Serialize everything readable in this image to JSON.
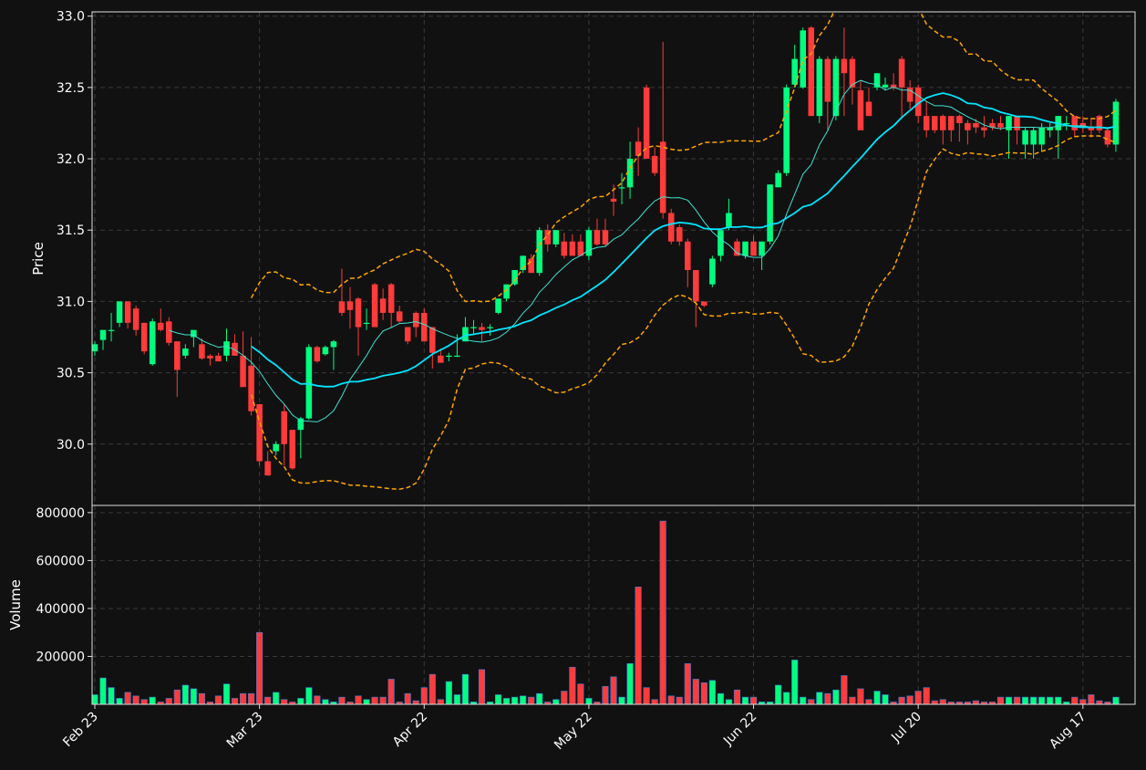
{
  "colors": {
    "background": "#111111",
    "up": "#00ff7f",
    "down": "#ff3b3b",
    "ma_fast": "#40e0d0",
    "ma_slow": "#00e5ff",
    "bollinger": "#ffa500",
    "grid": "#3a3a3a",
    "text": "#ffffff",
    "volume_edge": "#3a7bd5"
  },
  "chart_data": {
    "type": "candlestick",
    "panels": [
      {
        "name": "price",
        "ylabel": "Price",
        "ylim": [
          29.57,
          33.03
        ],
        "yticks": [
          "30.0",
          "30.5",
          "31.0",
          "31.5",
          "32.0",
          "32.5",
          "33.0"
        ],
        "grid": true
      },
      {
        "name": "volume",
        "ylabel": "Volume",
        "ylim": [
          0,
          830000
        ],
        "yticks": [
          "200000",
          "400000",
          "600000",
          "800000"
        ],
        "grid": true
      }
    ],
    "x_range": [
      0,
      126
    ],
    "x_ticks": [
      {
        "index": 0,
        "label": "Feb 23"
      },
      {
        "index": 20,
        "label": "Mar 23"
      },
      {
        "index": 40,
        "label": "Apr 22"
      },
      {
        "index": 60,
        "label": "May 22"
      },
      {
        "index": 80,
        "label": "Jun 22"
      },
      {
        "index": 100,
        "label": "Jul 20"
      },
      {
        "index": 120,
        "label": "Aug 17"
      }
    ],
    "candles_ohlcv": [
      [
        30.65,
        30.72,
        30.62,
        30.7,
        40000
      ],
      [
        30.73,
        30.8,
        30.66,
        30.8,
        110000
      ],
      [
        30.8,
        30.92,
        30.72,
        30.8,
        70000
      ],
      [
        30.85,
        31.0,
        30.82,
        31.0,
        25000
      ],
      [
        31.0,
        31.0,
        30.81,
        30.85,
        50000
      ],
      [
        30.95,
        30.97,
        30.76,
        30.8,
        35000
      ],
      [
        30.85,
        30.85,
        30.63,
        30.65,
        20000
      ],
      [
        30.56,
        30.88,
        30.55,
        30.86,
        30000
      ],
      [
        30.85,
        30.95,
        30.79,
        30.8,
        10000
      ],
      [
        30.86,
        30.89,
        30.69,
        30.71,
        25000
      ],
      [
        30.72,
        30.72,
        30.33,
        30.52,
        60000
      ],
      [
        30.62,
        30.7,
        30.6,
        30.67,
        80000
      ],
      [
        30.75,
        30.79,
        30.68,
        30.8,
        65000
      ],
      [
        30.7,
        30.74,
        30.59,
        30.6,
        45000
      ],
      [
        30.62,
        30.63,
        30.55,
        30.6,
        10000
      ],
      [
        30.62,
        30.64,
        30.58,
        30.58,
        35000
      ],
      [
        30.62,
        30.81,
        30.58,
        30.72,
        85000
      ],
      [
        30.71,
        30.77,
        30.62,
        30.62,
        25000
      ],
      [
        30.62,
        30.79,
        30.59,
        30.4,
        45000
      ],
      [
        30.55,
        30.75,
        30.2,
        30.23,
        45000
      ],
      [
        30.28,
        30.28,
        29.85,
        29.88,
        300000
      ],
      [
        29.88,
        29.95,
        29.81,
        29.78,
        30000
      ],
      [
        29.95,
        30.02,
        29.92,
        30.0,
        50000
      ],
      [
        30.23,
        30.28,
        29.85,
        30.0,
        20000
      ],
      [
        30.1,
        30.1,
        29.82,
        29.83,
        10000
      ],
      [
        30.1,
        30.19,
        29.9,
        30.18,
        25000
      ],
      [
        30.18,
        30.7,
        30.17,
        30.68,
        70000
      ],
      [
        30.68,
        30.69,
        30.57,
        30.58,
        35000
      ],
      [
        30.63,
        30.69,
        30.62,
        30.68,
        20000
      ],
      [
        30.68,
        30.73,
        30.52,
        30.72,
        10000
      ],
      [
        31.0,
        31.23,
        30.9,
        30.92,
        30000
      ],
      [
        31.0,
        31.1,
        30.81,
        30.94,
        10000
      ],
      [
        31.02,
        31.03,
        30.62,
        30.82,
        35000
      ],
      [
        30.85,
        30.95,
        30.8,
        30.85,
        20000
      ],
      [
        31.12,
        31.13,
        30.84,
        30.82,
        30000
      ],
      [
        31.02,
        31.09,
        30.87,
        30.92,
        30000
      ],
      [
        31.12,
        31.13,
        30.82,
        30.92,
        105000
      ],
      [
        30.93,
        30.97,
        30.85,
        30.86,
        10000
      ],
      [
        30.82,
        30.82,
        30.7,
        30.72,
        45000
      ],
      [
        30.92,
        30.93,
        30.75,
        30.82,
        15000
      ],
      [
        30.92,
        30.95,
        30.74,
        30.72,
        70000
      ],
      [
        30.82,
        30.82,
        30.53,
        30.64,
        125000
      ],
      [
        30.62,
        30.67,
        30.58,
        30.57,
        20000
      ],
      [
        30.62,
        30.64,
        30.58,
        30.62,
        95000
      ],
      [
        30.62,
        30.77,
        30.61,
        30.62,
        40000
      ],
      [
        30.72,
        30.89,
        30.72,
        30.82,
        125000
      ],
      [
        30.82,
        30.87,
        30.77,
        30.82,
        10000
      ],
      [
        30.82,
        30.85,
        30.72,
        30.8,
        145000
      ],
      [
        30.82,
        30.84,
        30.76,
        30.82,
        10000
      ],
      [
        30.92,
        31.02,
        30.91,
        31.02,
        40000
      ],
      [
        31.02,
        31.08,
        31.0,
        31.12,
        25000
      ],
      [
        31.12,
        31.21,
        31.11,
        31.22,
        30000
      ],
      [
        31.22,
        31.32,
        31.2,
        31.32,
        35000
      ],
      [
        31.3,
        31.33,
        31.25,
        31.2,
        30000
      ],
      [
        31.2,
        31.52,
        31.18,
        31.5,
        45000
      ],
      [
        31.5,
        31.54,
        31.35,
        31.4,
        10000
      ],
      [
        31.4,
        31.5,
        31.38,
        31.5,
        20000
      ],
      [
        31.42,
        31.48,
        31.3,
        31.32,
        55000
      ],
      [
        31.42,
        31.47,
        31.38,
        31.32,
        155000
      ],
      [
        31.42,
        31.47,
        31.38,
        31.32,
        85000
      ],
      [
        31.32,
        31.52,
        31.29,
        31.5,
        25000
      ],
      [
        31.5,
        31.58,
        31.39,
        31.4,
        10000
      ],
      [
        31.5,
        31.58,
        31.39,
        31.4,
        75000
      ],
      [
        31.72,
        31.82,
        31.6,
        31.7,
        115000
      ],
      [
        31.8,
        31.9,
        31.68,
        31.8,
        30000
      ],
      [
        31.8,
        32.12,
        31.72,
        32.0,
        170000
      ],
      [
        32.12,
        32.22,
        31.88,
        32.02,
        490000
      ],
      [
        32.5,
        32.52,
        32.1,
        32.0,
        70000
      ],
      [
        32.02,
        32.08,
        31.88,
        31.9,
        20000
      ],
      [
        32.12,
        32.82,
        31.58,
        31.62,
        765000
      ],
      [
        31.62,
        31.65,
        31.4,
        31.42,
        35000
      ],
      [
        31.52,
        31.54,
        31.39,
        31.42,
        30000
      ],
      [
        31.42,
        31.44,
        31.1,
        31.22,
        170000
      ],
      [
        31.22,
        31.22,
        30.82,
        31.0,
        105000
      ],
      [
        31.0,
        31.0,
        30.96,
        30.97,
        90000
      ],
      [
        31.12,
        31.32,
        31.1,
        31.3,
        100000
      ],
      [
        31.32,
        31.5,
        31.28,
        31.5,
        45000
      ],
      [
        31.52,
        31.72,
        31.5,
        31.62,
        20000
      ],
      [
        31.42,
        31.44,
        31.35,
        31.32,
        60000
      ],
      [
        31.32,
        31.41,
        31.3,
        31.42,
        30000
      ],
      [
        31.42,
        31.46,
        31.39,
        31.32,
        30000
      ],
      [
        31.32,
        31.42,
        31.22,
        31.42,
        10000
      ],
      [
        31.42,
        31.81,
        31.4,
        31.82,
        10000
      ],
      [
        31.8,
        31.92,
        31.8,
        31.9,
        80000
      ],
      [
        31.9,
        32.52,
        31.88,
        32.5,
        50000
      ],
      [
        32.52,
        32.8,
        32.5,
        32.7,
        185000
      ],
      [
        32.5,
        32.92,
        32.49,
        32.9,
        30000
      ],
      [
        32.92,
        32.93,
        32.3,
        32.3,
        20000
      ],
      [
        32.3,
        32.72,
        32.25,
        32.7,
        50000
      ],
      [
        32.7,
        32.72,
        32.2,
        32.4,
        45000
      ],
      [
        32.3,
        32.72,
        32.27,
        32.7,
        60000
      ],
      [
        32.7,
        32.92,
        32.3,
        32.6,
        120000
      ],
      [
        32.7,
        32.72,
        32.38,
        32.5,
        30000
      ],
      [
        32.48,
        32.55,
        32.2,
        32.2,
        65000
      ],
      [
        32.4,
        32.5,
        32.32,
        32.3,
        20000
      ],
      [
        32.5,
        32.6,
        32.48,
        32.6,
        55000
      ],
      [
        32.5,
        32.57,
        32.48,
        32.52,
        40000
      ],
      [
        32.52,
        32.6,
        32.48,
        32.5,
        10000
      ],
      [
        32.7,
        32.72,
        32.28,
        32.5,
        30000
      ],
      [
        32.5,
        32.55,
        32.35,
        32.4,
        35000
      ],
      [
        32.5,
        32.52,
        32.25,
        32.3,
        55000
      ],
      [
        32.3,
        32.4,
        32.15,
        32.2,
        70000
      ],
      [
        32.3,
        32.3,
        32.18,
        32.2,
        15000
      ],
      [
        32.3,
        32.31,
        32.1,
        32.2,
        20000
      ],
      [
        32.3,
        32.3,
        32.12,
        32.2,
        10000
      ],
      [
        32.3,
        32.31,
        32.12,
        32.25,
        10000
      ],
      [
        32.25,
        32.27,
        32.1,
        32.2,
        10000
      ],
      [
        32.25,
        32.28,
        32.18,
        32.22,
        15000
      ],
      [
        32.22,
        32.3,
        32.15,
        32.2,
        10000
      ],
      [
        32.25,
        32.28,
        32.2,
        32.22,
        10000
      ],
      [
        32.25,
        32.3,
        32.2,
        32.22,
        30000
      ],
      [
        32.2,
        32.3,
        32.0,
        32.3,
        30000
      ],
      [
        32.3,
        32.3,
        32.1,
        32.2,
        30000
      ],
      [
        32.1,
        32.22,
        32.0,
        32.2,
        30000
      ],
      [
        32.1,
        32.22,
        32.0,
        32.2,
        30000
      ],
      [
        32.1,
        32.25,
        32.05,
        32.22,
        30000
      ],
      [
        32.2,
        32.25,
        32.15,
        32.22,
        30000
      ],
      [
        32.2,
        32.3,
        32.0,
        32.3,
        30000
      ],
      [
        32.25,
        32.3,
        32.2,
        32.25,
        10000
      ],
      [
        32.3,
        32.3,
        32.15,
        32.2,
        30000
      ],
      [
        32.25,
        32.3,
        32.18,
        32.22,
        20000
      ],
      [
        32.22,
        32.28,
        32.15,
        32.2,
        40000
      ],
      [
        32.3,
        32.31,
        32.18,
        32.2,
        15000
      ],
      [
        32.2,
        32.22,
        32.08,
        32.1,
        10000
      ],
      [
        32.1,
        32.42,
        32.05,
        32.4,
        30000
      ]
    ]
  }
}
